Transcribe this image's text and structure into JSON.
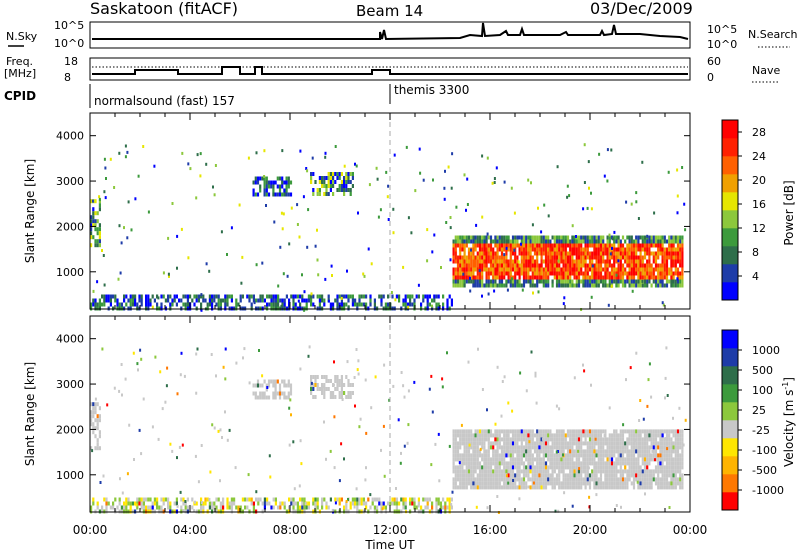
{
  "header": {
    "title": "Saskatoon (fitACF)",
    "beam": "Beam 14",
    "date": "03/Dec/2009"
  },
  "panels": {
    "nsky_label": "N.Sky",
    "nsky_ticks": [
      "10^5",
      "10^0"
    ],
    "nsearch_label": "N.Search",
    "nsearch_ticks": [
      "10^5",
      "10^0"
    ],
    "freq_label_top": "Freq.",
    "freq_label_unit": "[MHz]",
    "freq_ticks": [
      "18",
      "8"
    ],
    "nave_label": "Nave",
    "nave_ticks": [
      "60",
      "0"
    ],
    "cpid_label": "CPID",
    "cpid_segments": [
      {
        "text": "normalsound (fast) 157",
        "start_h": 0
      },
      {
        "text": "themis 3300",
        "start_h": 12
      }
    ]
  },
  "x_axis": {
    "label": "Time UT",
    "ticks": [
      "00:00",
      "04:00",
      "08:00",
      "12:00",
      "16:00",
      "20:00",
      "00:00"
    ]
  },
  "colors": {
    "scatter_gray": "#c8c8c8",
    "power_scale": [
      "#0000ff",
      "#1e3ca8",
      "#2e6e4a",
      "#3c9a3c",
      "#8cc83c",
      "#e6e600",
      "#f0a000",
      "#ff6000",
      "#ff2000",
      "#ff0000"
    ],
    "velocity_scale": [
      "#0000ff",
      "#1e3ca8",
      "#2e6e4a",
      "#3c9a3c",
      "#8cc83c",
      "#c8c8c8",
      "#ffe600",
      "#ffb400",
      "#ff7800",
      "#ff0000"
    ]
  },
  "chart_data": [
    {
      "type": "heatmap",
      "title": "",
      "xlabel": "Time UT",
      "ylabel": "Slant Range [km]",
      "xlim": [
        0,
        24
      ],
      "ylim": [
        180,
        4500
      ],
      "yticks": [
        "1000",
        "2000",
        "3000",
        "4000"
      ],
      "colorbar": {
        "label": "Power [dB]",
        "ticks": [
          "4",
          "8",
          "12",
          "16",
          "20",
          "24",
          "28"
        ],
        "range": [
          0,
          30
        ]
      },
      "regions": [
        {
          "name": "ground scatter 00-01 UT",
          "t": [
            0,
            0.4
          ],
          "r": [
            1600,
            2600
          ],
          "level": "mid"
        },
        {
          "name": "near-range echoes",
          "t": [
            0,
            14.5
          ],
          "r": [
            200,
            500
          ],
          "level": "low"
        },
        {
          "name": "patch 07-08 UT",
          "t": [
            6.5,
            8
          ],
          "r": [
            2700,
            3100
          ],
          "level": "low"
        },
        {
          "name": "patch 09-10.5 UT",
          "t": [
            8.8,
            10.5
          ],
          "r": [
            2700,
            3200
          ],
          "level": "mid"
        },
        {
          "name": "main echo band",
          "t": [
            14.5,
            23.7
          ],
          "r": [
            700,
            1800
          ],
          "level": "high"
        }
      ]
    },
    {
      "type": "heatmap",
      "title": "",
      "xlabel": "Time UT",
      "ylabel": "Slant Range [km]",
      "xlim": [
        0,
        24
      ],
      "ylim": [
        180,
        4500
      ],
      "yticks": [
        "1000",
        "2000",
        "3000",
        "4000"
      ],
      "colorbar": {
        "label": "Velocity [m s^-1]",
        "ticks": [
          "1000",
          "500",
          "100",
          "25",
          "-25",
          "-100",
          "-500",
          "-1000"
        ]
      },
      "regions": [
        {
          "name": "ground scatter 00-01 UT",
          "t": [
            0,
            0.4
          ],
          "r": [
            1600,
            2600
          ],
          "level": "ground"
        },
        {
          "name": "near-range echoes",
          "t": [
            0,
            14.5
          ],
          "r": [
            200,
            500
          ],
          "level": "mixed"
        },
        {
          "name": "patch 07-08 UT",
          "t": [
            6.5,
            8
          ],
          "r": [
            2700,
            3100
          ],
          "level": "ground"
        },
        {
          "name": "patch 09-10.5 UT",
          "t": [
            8.8,
            10.5
          ],
          "r": [
            2700,
            3200
          ],
          "level": "ground"
        },
        {
          "name": "main echo band",
          "t": [
            14.5,
            23.7
          ],
          "r": [
            700,
            2000
          ],
          "level": "ground"
        }
      ]
    }
  ]
}
